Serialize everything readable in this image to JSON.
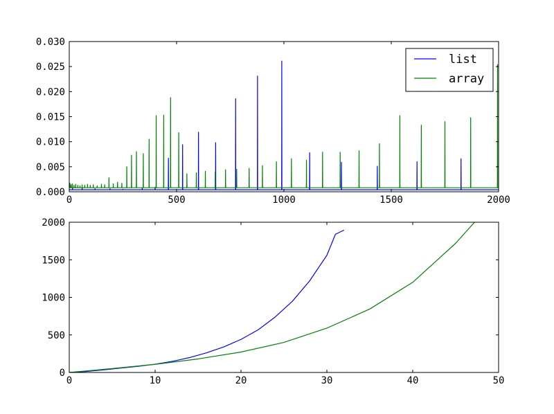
{
  "chart_data": [
    {
      "type": "line",
      "title": "",
      "xlabel": "",
      "ylabel": "",
      "xlim": [
        0,
        2000
      ],
      "ylim": [
        0,
        0.03
      ],
      "x_ticks": [
        "0",
        "500",
        "1000",
        "1500",
        "2000"
      ],
      "y_ticks": [
        "0.000",
        "0.005",
        "0.010",
        "0.015",
        "0.020",
        "0.025",
        "0.030"
      ],
      "legend": {
        "placement": "top-right",
        "entries": [
          "list",
          "array"
        ]
      },
      "grid": false,
      "series": [
        {
          "name": "list",
          "color": "#0000ff",
          "baseline": 0.0004,
          "spikes": [
            [
              15,
              0.0008
            ],
            [
              60,
              0.0007
            ],
            [
              120,
              0.0006
            ],
            [
              190,
              0.0006
            ],
            [
              250,
              0.0005
            ],
            [
              340,
              0.0008
            ],
            [
              400,
              0.0009
            ],
            [
              462,
              0.0067
            ],
            [
              528,
              0.0094
            ],
            [
              602,
              0.0119
            ],
            [
              682,
              0.0098
            ],
            [
              775,
              0.0186
            ],
            [
              877,
              0.0231
            ],
            [
              990,
              0.0261
            ],
            [
              1120,
              0.0078
            ],
            [
              1268,
              0.0059
            ],
            [
              1435,
              0.0051
            ],
            [
              1620,
              0.006
            ],
            [
              1825,
              0.0066
            ]
          ]
        },
        {
          "name": "array",
          "color": "#008000",
          "baseline": 0.0008,
          "spikes": [
            [
              3,
              0.0017
            ],
            [
              8,
              0.0014
            ],
            [
              14,
              0.0016
            ],
            [
              22,
              0.0013
            ],
            [
              30,
              0.0015
            ],
            [
              40,
              0.0013
            ],
            [
              50,
              0.0012
            ],
            [
              60,
              0.0014
            ],
            [
              72,
              0.0013
            ],
            [
              85,
              0.0015
            ],
            [
              98,
              0.0013
            ],
            [
              112,
              0.0014
            ],
            [
              130,
              0.0012
            ],
            [
              150,
              0.0015
            ],
            [
              165,
              0.0014
            ],
            [
              185,
              0.0028
            ],
            [
              205,
              0.0016
            ],
            [
              225,
              0.0019
            ],
            [
              245,
              0.0017
            ],
            [
              268,
              0.005
            ],
            [
              290,
              0.0073
            ],
            [
              313,
              0.008
            ],
            [
              345,
              0.0076
            ],
            [
              372,
              0.0105
            ],
            [
              405,
              0.0152
            ],
            [
              440,
              0.0153
            ],
            [
              472,
              0.0188
            ],
            [
              510,
              0.0118
            ],
            [
              548,
              0.0036
            ],
            [
              592,
              0.0038
            ],
            [
              634,
              0.0041
            ],
            [
              680,
              0.004
            ],
            [
              728,
              0.0044
            ],
            [
              780,
              0.0045
            ],
            [
              838,
              0.0047
            ],
            [
              900,
              0.0052
            ],
            [
              965,
              0.006
            ],
            [
              1035,
              0.0066
            ],
            [
              1105,
              0.0063
            ],
            [
              1180,
              0.0079
            ],
            [
              1262,
              0.0079
            ],
            [
              1350,
              0.0082
            ],
            [
              1445,
              0.0096
            ],
            [
              1540,
              0.0152
            ],
            [
              1640,
              0.0133
            ],
            [
              1750,
              0.014
            ],
            [
              1870,
              0.0148
            ],
            [
              1995,
              0.0254
            ]
          ]
        }
      ]
    },
    {
      "type": "line",
      "title": "",
      "xlabel": "",
      "ylabel": "",
      "xlim": [
        0,
        50
      ],
      "ylim": [
        0,
        2000
      ],
      "x_ticks": [
        "0",
        "10",
        "20",
        "30",
        "40",
        "50"
      ],
      "y_ticks": [
        "0",
        "500",
        "1000",
        "1500",
        "2000"
      ],
      "grid": false,
      "series": [
        {
          "name": "list",
          "color": "#0000ff",
          "x": [
            0,
            2,
            4,
            6,
            8,
            10,
            12,
            14,
            16,
            18,
            20,
            22,
            24,
            26,
            28,
            30,
            31,
            32
          ],
          "y": [
            0,
            14,
            34,
            58,
            82,
            110,
            148,
            198,
            262,
            340,
            440,
            568,
            740,
            950,
            1220,
            1560,
            1840,
            1895
          ]
        },
        {
          "name": "array",
          "color": "#008000",
          "x": [
            0,
            5,
            10,
            15,
            20,
            25,
            30,
            35,
            40,
            45,
            47.2
          ],
          "y": [
            0,
            52,
            108,
            180,
            272,
            400,
            590,
            845,
            1200,
            1720,
            2000
          ]
        }
      ]
    }
  ]
}
